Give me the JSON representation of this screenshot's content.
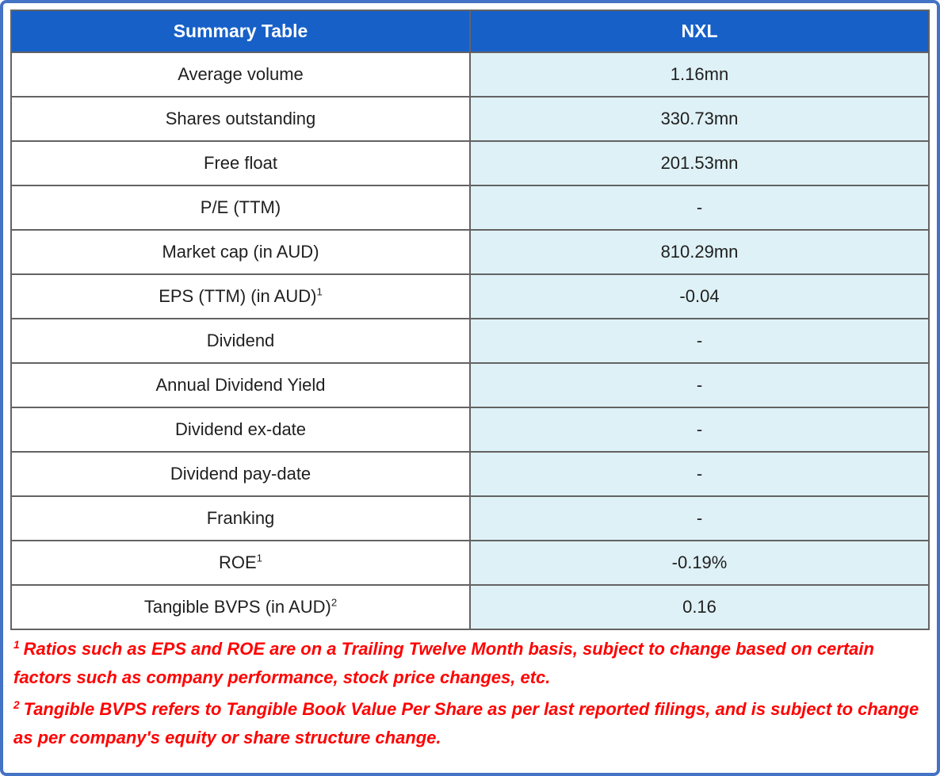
{
  "table": {
    "header": {
      "col1": "Summary Table",
      "col2": "NXL"
    },
    "rows": [
      {
        "label": "Average volume",
        "sup": "",
        "value": "1.16mn"
      },
      {
        "label": "Shares outstanding",
        "sup": "",
        "value": "330.73mn"
      },
      {
        "label": "Free float",
        "sup": "",
        "value": "201.53mn"
      },
      {
        "label": "P/E (TTM)",
        "sup": "",
        "value": "-"
      },
      {
        "label": "Market cap (in AUD)",
        "sup": "",
        "value": "810.29mn"
      },
      {
        "label": "EPS (TTM) (in AUD)",
        "sup": "1",
        "value": "-0.04"
      },
      {
        "label": "Dividend",
        "sup": "",
        "value": "-"
      },
      {
        "label": "Annual Dividend Yield",
        "sup": "",
        "value": "-"
      },
      {
        "label": "Dividend ex-date",
        "sup": "",
        "value": "-"
      },
      {
        "label": "Dividend pay-date",
        "sup": "",
        "value": "-"
      },
      {
        "label": "Franking",
        "sup": "",
        "value": "-"
      },
      {
        "label": "ROE",
        "sup": "1",
        "value": "-0.19%"
      },
      {
        "label": "Tangible BVPS (in AUD)",
        "sup": "2",
        "value": "0.16"
      }
    ]
  },
  "footnotes": [
    {
      "marker": "1",
      "text": "Ratios such as EPS and ROE are on a Trailing Twelve Month basis, subject to change based on certain factors such as company performance, stock price changes, etc."
    },
    {
      "marker": "2",
      "text": "Tangible BVPS refers to Tangible Book Value Per Share as per last reported filings, and is subject to change as per company's equity or share structure change."
    }
  ],
  "colors": {
    "frame_border": "#4472C4",
    "header_bg": "#1760C8",
    "header_text": "#FFFFFF",
    "value_cell_bg": "#DEF1F6",
    "cell_border": "#636363",
    "body_text": "#1F1F1F",
    "footnote_text": "#FF0000"
  }
}
